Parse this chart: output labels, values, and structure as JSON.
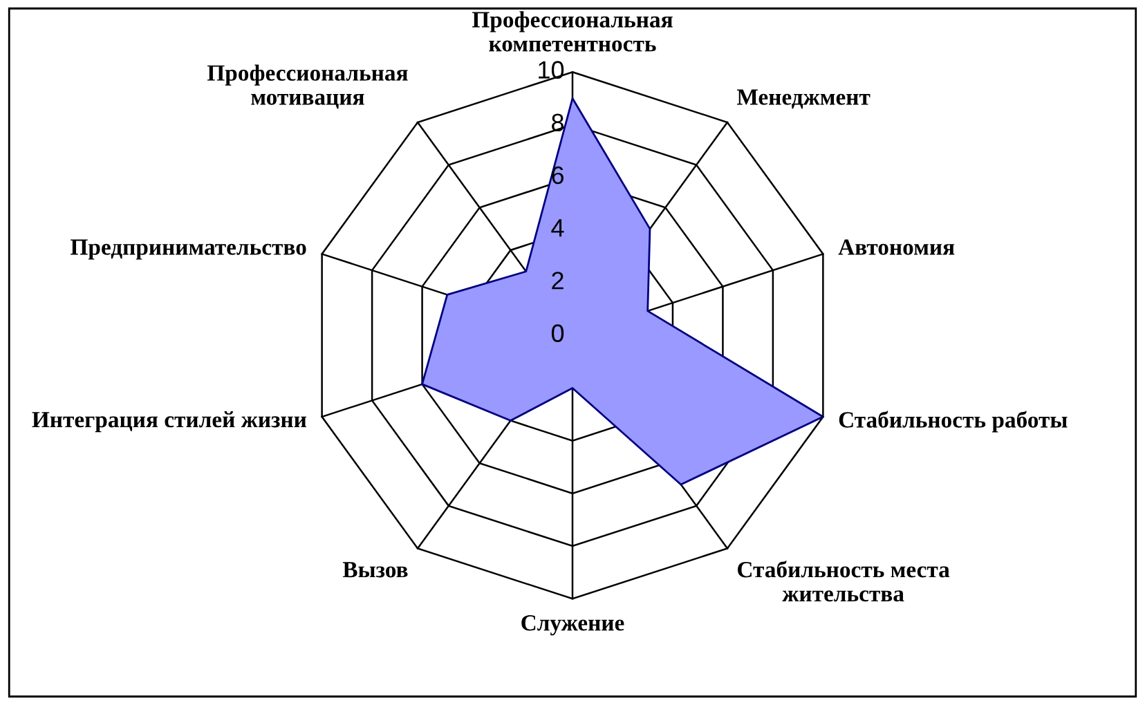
{
  "chart_data": {
    "type": "radar",
    "categories": [
      "Профессиональная\nкомпетентность",
      "Менеджмент",
      "Автономия",
      "Стабильность работы",
      "Стабильность места\nжительства",
      "Служение",
      "Вызов",
      "Интеграция стилей жизни",
      "Предпринимательство",
      "Профессиональная\nмотивация"
    ],
    "series": [
      {
        "color": "#9999ff",
        "values": [
          9,
          5,
          3,
          10,
          7,
          2,
          4,
          6,
          5,
          3
        ]
      }
    ],
    "ylim": [
      0,
      10
    ],
    "yticks": [
      0,
      2,
      4,
      6,
      8,
      10
    ],
    "grid": true
  }
}
